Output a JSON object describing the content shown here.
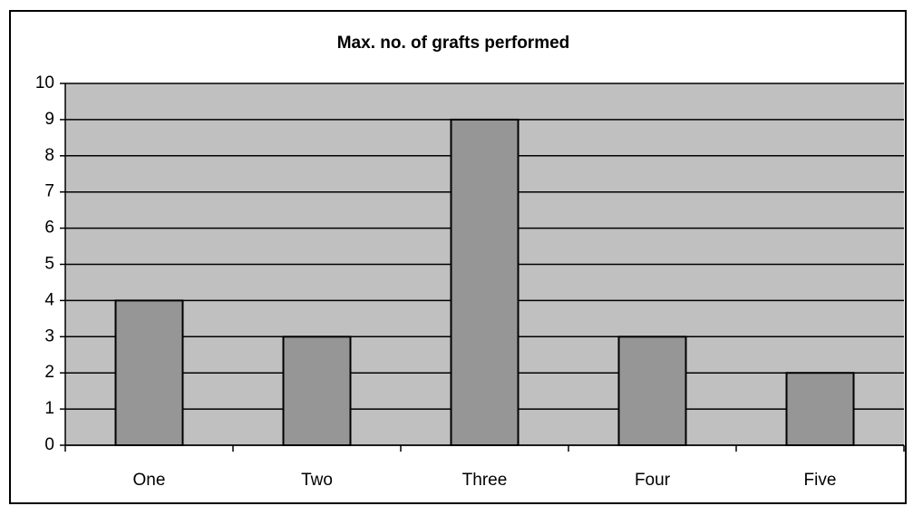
{
  "chart_data": {
    "type": "bar",
    "title": "Max. no. of grafts performed",
    "categories": [
      "One",
      "Two",
      "Three",
      "Four",
      "Five"
    ],
    "values": [
      4,
      3,
      9,
      3,
      2
    ],
    "color": "#969696",
    "plot_background": "#c0c0c0",
    "ylim": [
      0,
      10
    ],
    "yticks": [
      0,
      1,
      2,
      3,
      4,
      5,
      6,
      7,
      8,
      9,
      10
    ],
    "grid": true
  }
}
